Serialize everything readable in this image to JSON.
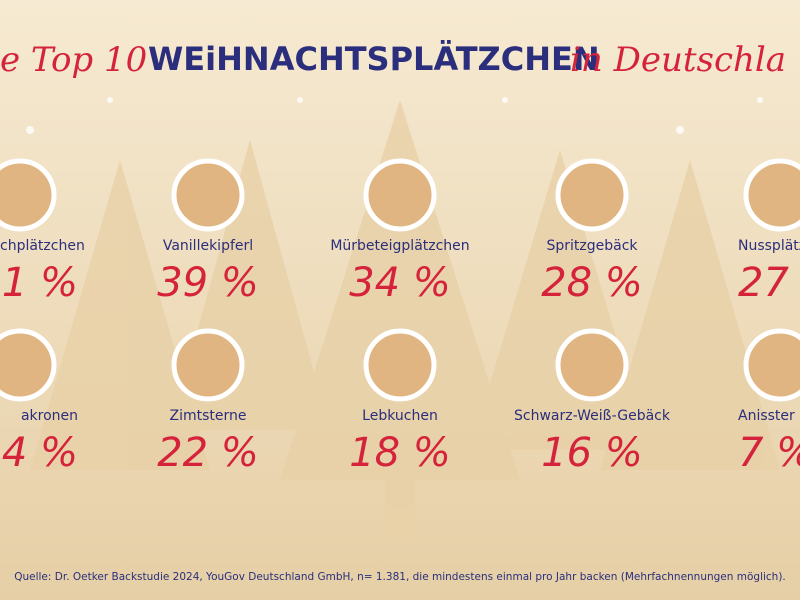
{
  "header": {
    "title_left": "e Top 10",
    "title_main": "WEiHNACHTSPLÄTZCHEN",
    "title_right": "in Deutschla"
  },
  "items": [
    {
      "name": "chplätzchen",
      "percent": "1 %"
    },
    {
      "name": "Vanillekipferl",
      "percent": "39 %"
    },
    {
      "name": "Mürbeteigplätzchen",
      "percent": "34 %"
    },
    {
      "name": "Spritzgebäck",
      "percent": "28 %"
    },
    {
      "name": "Nussplätz",
      "percent": "27"
    },
    {
      "name": "akronen",
      "percent": "4 %"
    },
    {
      "name": "Zimtsterne",
      "percent": "22 %"
    },
    {
      "name": "Lebkuchen",
      "percent": "18 %"
    },
    {
      "name": "Schwarz-Weiß-Gebäck",
      "percent": "16 %"
    },
    {
      "name": "Anisster",
      "percent": "7 %"
    }
  ],
  "footer": {
    "source": "Quelle: Dr. Oetker Backstudie 2024, YouGov Deutschland GmbH, n= 1.381, die mindestens einmal pro Jahr backen (Mehrfachnennungen möglich)."
  }
}
